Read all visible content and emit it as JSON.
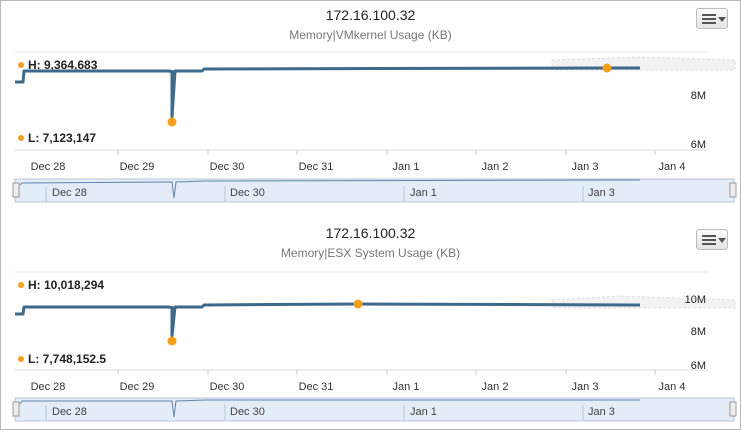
{
  "charts": [
    {
      "title": "172.16.100.32",
      "subtitle": "Memory|VMkernel Usage (KB)",
      "high_label": "H: 9,364,683",
      "low_label": "L: 7,123,147",
      "y_ticks": [
        "8M",
        "6M"
      ],
      "x_ticks": [
        "Dec 28",
        "Dec 29",
        "Dec 30",
        "Dec 31",
        "Jan 1",
        "Jan 2",
        "Jan 3",
        "Jan 4"
      ],
      "navigator_ticks": [
        "Dec 28",
        "Dec 30",
        "Jan 1",
        "Jan 3"
      ]
    },
    {
      "title": "172.16.100.32",
      "subtitle": "Memory|ESX System Usage (KB)",
      "high_label": "H: 10,018,294",
      "low_label": "L: 7,748,152.5",
      "y_ticks": [
        "10M",
        "8M",
        "6M"
      ],
      "x_ticks": [
        "Dec 28",
        "Dec 29",
        "Dec 30",
        "Dec 31",
        "Jan 1",
        "Jan 2",
        "Jan 3",
        "Jan 4"
      ],
      "navigator_ticks": [
        "Dec 28",
        "Dec 30",
        "Jan 1",
        "Jan 3"
      ]
    }
  ],
  "chart_data": [
    {
      "type": "line",
      "title": "172.16.100.32",
      "subtitle": "Memory|VMkernel Usage (KB)",
      "x_unit": "date",
      "x_range": [
        "Dec 27 12:00",
        "Jan 4 12:00"
      ],
      "ylim": [
        5500000,
        10000000
      ],
      "grid": true,
      "series": [
        {
          "points": [
            [
              "Dec 27 12:00",
              8850000
            ],
            [
              "Dec 27 20:00",
              8850000
            ],
            [
              "Dec 27 22:00",
              9230000
            ],
            [
              "Dec 29 09:00",
              9220000
            ],
            [
              "Dec 29 10:30",
              7123147
            ],
            [
              "Dec 29 12:00",
              9225000
            ],
            [
              "Dec 29 19:00",
              9240000
            ],
            [
              "Dec 29 20:30",
              9320000
            ],
            [
              "Jan 3 17:00",
              9345000
            ],
            [
              "Jan 3 18:00",
              9364683
            ]
          ]
        }
      ],
      "markers": [
        {
          "label": "H: 9,364,683",
          "x": "Jan 3 06:00",
          "y": 9364683
        },
        {
          "label": "L: 7,123,147",
          "x": "Dec 29 10:30",
          "y": 7123147
        }
      ]
    },
    {
      "type": "line",
      "title": "172.16.100.32",
      "subtitle": "Memory|ESX System Usage (KB)",
      "x_unit": "date",
      "x_range": [
        "Dec 27 12:00",
        "Jan 4 12:00"
      ],
      "ylim": [
        5500000,
        11000000
      ],
      "grid": true,
      "series": [
        {
          "points": [
            [
              "Dec 27 12:00",
              9500000
            ],
            [
              "Dec 27 20:00",
              9500000
            ],
            [
              "Dec 27 22:00",
              9870000
            ],
            [
              "Dec 29 09:00",
              9860000
            ],
            [
              "Dec 29 10:30",
              7748152.5
            ],
            [
              "Dec 29 12:00",
              9865000
            ],
            [
              "Dec 29 19:00",
              9880000
            ],
            [
              "Dec 29 20:30",
              9950000
            ],
            [
              "Dec 31 12:00",
              10018294
            ],
            [
              "Jan 3 18:00",
              9990000
            ]
          ]
        }
      ],
      "markers": [
        {
          "label": "H: 10,018,294",
          "x": "Dec 31 12:00",
          "y": 10018294
        },
        {
          "label": "L: 7,748,152.5",
          "x": "Dec 29 10:30",
          "y": 7748152.5
        }
      ]
    }
  ]
}
